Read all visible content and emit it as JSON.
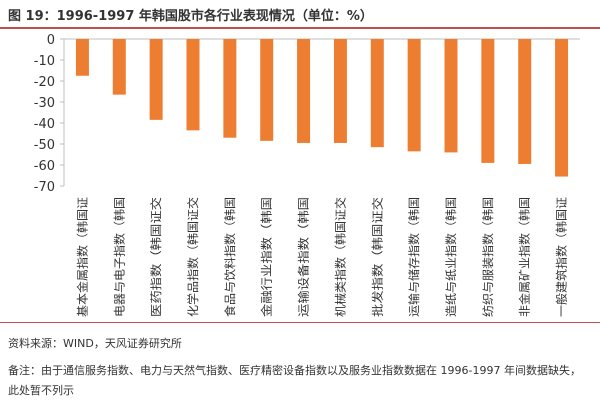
{
  "header": {
    "title": "图 19：1996-1997 年韩国股市各行业表现情况（单位：%）"
  },
  "chart_data": {
    "type": "bar",
    "title": "",
    "xlabel": "",
    "ylabel": "",
    "ylim": [
      -70,
      0
    ],
    "yticks": [
      "0",
      "-10",
      "-20",
      "-30",
      "-40",
      "-50",
      "-60",
      "-70"
    ],
    "categories": [
      "基本金属指数（韩国证",
      "电器与电子指数（韩国",
      "医药指数（韩国证交",
      "化学品指数（韩国证交",
      "食品与饮料指数（韩国",
      "金融行业指数（韩国",
      "运输设备指数（韩国",
      "机械类指数（韩国证交",
      "批发指数（韩国证交",
      "运输与储存指数（韩国",
      "造纸与纸业指数（韩国",
      "纺织与服装指数（韩国",
      "非金属矿业指数（韩国",
      "一般建筑指数（韩国证"
    ],
    "values": [
      -17.5,
      -26.5,
      -38.5,
      -43.5,
      -47,
      -48.5,
      -49.5,
      -49.5,
      -51.5,
      -53.5,
      -54,
      -59,
      -59.5,
      -65.5
    ],
    "color": "#ed7d31",
    "grid": false,
    "legend": "none"
  },
  "footer": {
    "source": "资料来源：WIND，天风证券研究所",
    "note_line1": "备注：由于通信服务指数、电力与天然气指数、医疗精密设备指数以及服务业指数数据在 1996-1997 年间数据缺失，",
    "note_line2": "此处暂不列示"
  }
}
